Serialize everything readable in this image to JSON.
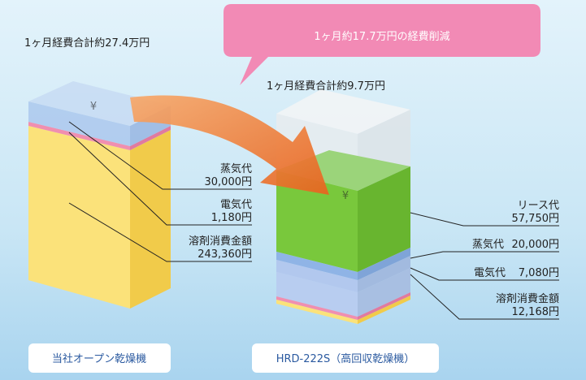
{
  "header": {
    "callout": "1ヶ月約17.7万円の経費削減"
  },
  "left": {
    "total": "1ヶ月経費合計約27.4万円",
    "name": "当社オープン乾燥機",
    "items": [
      {
        "label": "蒸気代",
        "amount": "30,000円"
      },
      {
        "label": "電気代",
        "amount": "1,180円"
      },
      {
        "label": "溶剤消費金額",
        "amount": "243,360円"
      }
    ]
  },
  "right": {
    "total": "1ヶ月経費合計約9.7万円",
    "name": "HRD-222S（高回収乾燥機）",
    "items": [
      {
        "label": "リース代",
        "amount": "57,750円"
      },
      {
        "label": "蒸気代",
        "amount": "20,000円"
      },
      {
        "label": "電気代",
        "amount": "7,080円"
      },
      {
        "label": "溶剤消費金額",
        "amount": "12,168円"
      }
    ]
  }
}
